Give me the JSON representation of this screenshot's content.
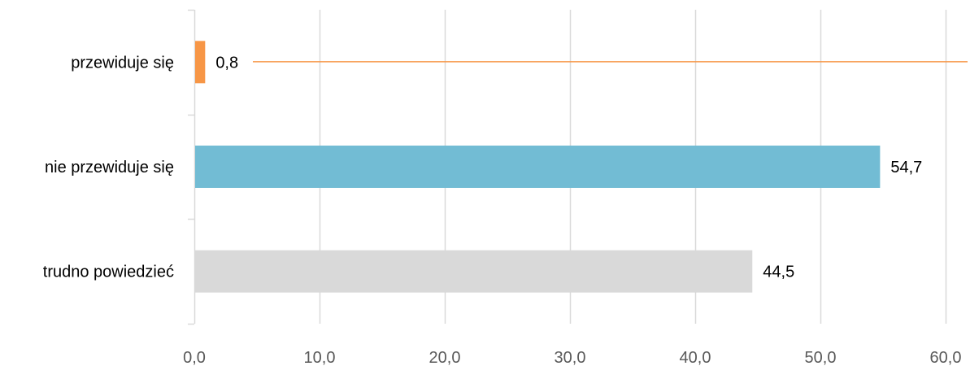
{
  "chart_data": {
    "type": "bar",
    "orientation": "horizontal",
    "categories": [
      "przewiduje się",
      "nie przewiduje się",
      "trudno powiedzieć"
    ],
    "values": [
      0.8,
      54.7,
      44.5
    ],
    "value_labels": [
      "0,8",
      "54,7",
      "44,5"
    ],
    "colors": [
      "#F79646",
      "#72BCD4",
      "#D9D9D9"
    ],
    "xlim": [
      0,
      60
    ],
    "xticks": [
      0,
      10,
      20,
      30,
      40,
      50,
      60
    ],
    "xtick_labels": [
      "0,0",
      "10,0",
      "20,0",
      "30,0",
      "40,0",
      "50,0",
      "60,0"
    ],
    "grid": true,
    "legend": "none",
    "title": "",
    "xlabel": "",
    "ylabel": ""
  }
}
